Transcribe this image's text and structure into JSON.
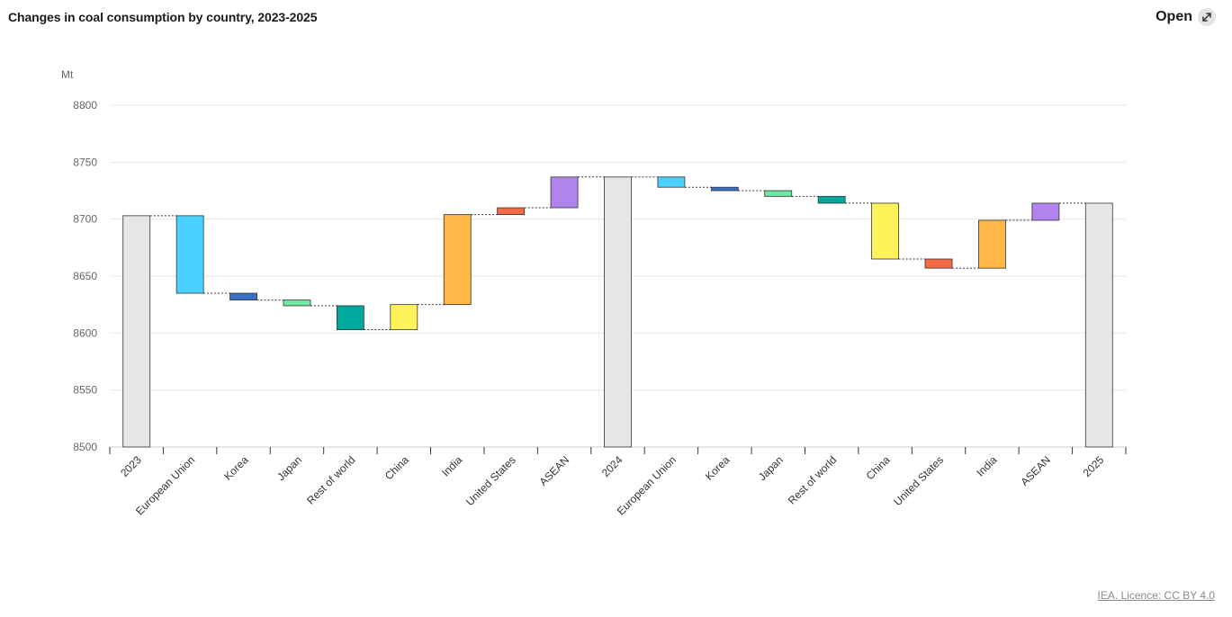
{
  "header": {
    "title": "Changes in coal consumption by country, 2023-2025",
    "open_label": "Open",
    "open_icon": "expand-icon"
  },
  "footer": {
    "licence": "IEA. Licence: CC BY 4.0"
  },
  "chart_data": {
    "type": "waterfall",
    "title": "Changes in coal consumption by country, 2023-2025",
    "ylabel": "Mt",
    "ylim": [
      8500,
      8800
    ],
    "yticks": [
      8500,
      8550,
      8600,
      8650,
      8700,
      8750,
      8800
    ],
    "grid": true,
    "colors": {
      "total": "#e6e6e6",
      "European Union": "#4ad1ff",
      "Korea": "#3a6fc8",
      "Japan": "#6ce8a0",
      "Rest of world": "#00a99d",
      "China": "#fff35c",
      "India": "#ffb845",
      "United States": "#f26a44",
      "ASEAN": "#b084ec"
    },
    "bars": [
      {
        "label": "2023",
        "kind": "total",
        "value": 8703
      },
      {
        "label": "European Union",
        "kind": "change",
        "value": -68
      },
      {
        "label": "Korea",
        "kind": "change",
        "value": -6
      },
      {
        "label": "Japan",
        "kind": "change",
        "value": -5
      },
      {
        "label": "Rest of world",
        "kind": "change",
        "value": -21
      },
      {
        "label": "China",
        "kind": "change",
        "value": 22
      },
      {
        "label": "India",
        "kind": "change",
        "value": 79
      },
      {
        "label": "United States",
        "kind": "change",
        "value": 6
      },
      {
        "label": "ASEAN",
        "kind": "change",
        "value": 27
      },
      {
        "label": "2024",
        "kind": "total",
        "value": 8737
      },
      {
        "label": "European Union",
        "kind": "change",
        "value": -9
      },
      {
        "label": "Korea",
        "kind": "change",
        "value": -3
      },
      {
        "label": "Japan",
        "kind": "change",
        "value": -5
      },
      {
        "label": "Rest of world",
        "kind": "change",
        "value": -6
      },
      {
        "label": "China",
        "kind": "change",
        "value": -49
      },
      {
        "label": "United States",
        "kind": "change",
        "value": -8
      },
      {
        "label": "India",
        "kind": "change",
        "value": 42
      },
      {
        "label": "ASEAN",
        "kind": "change",
        "value": 15
      },
      {
        "label": "2025",
        "kind": "total",
        "value": 8714
      }
    ]
  }
}
